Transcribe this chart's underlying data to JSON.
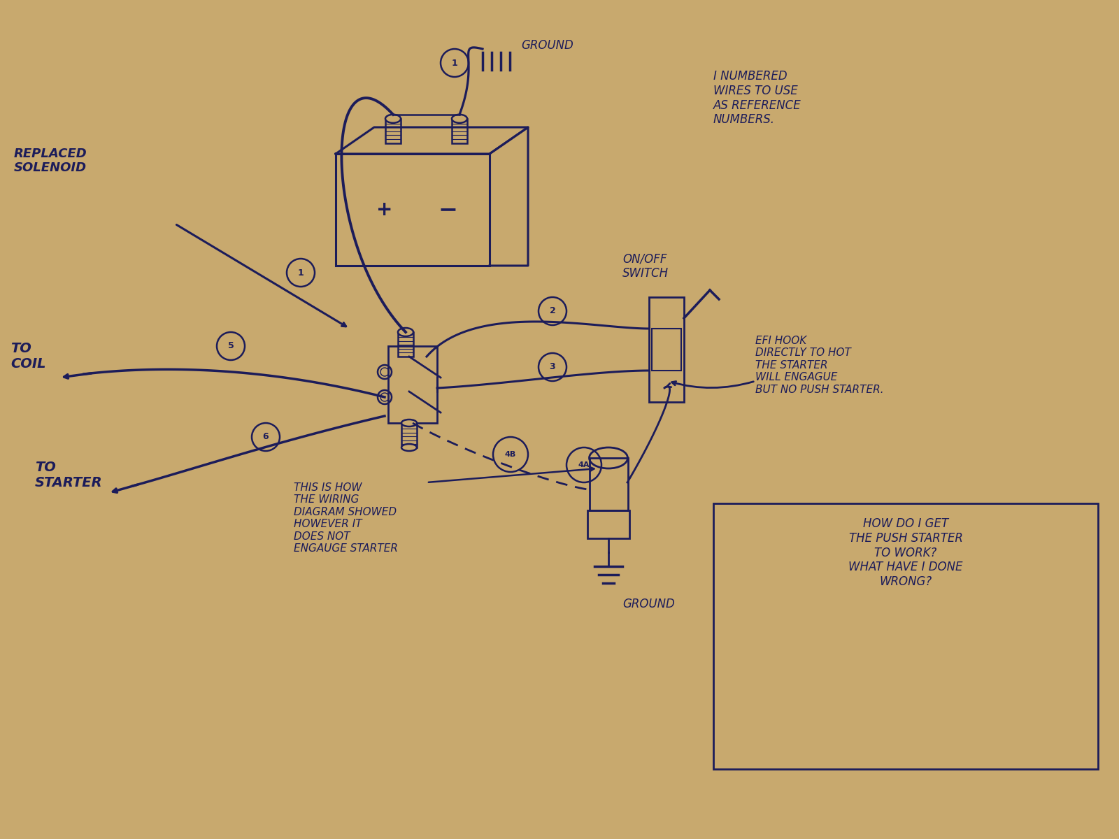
{
  "bg_color": "#c8a96e",
  "ink_color": "#1c1c5a",
  "texts": {
    "replaced_solenoid": "REPLACED\nSOLENOID",
    "to_coil": "TO\nCOIL",
    "to_starter": "TO\nSTARTER",
    "ground_top": "GROUND",
    "ground_bottom": "GROUND",
    "on_off_switch": "ON/OFF\nSWITCH",
    "numbered_note": "I NUMBERED\nWIRES TO USE\nAS REFERENCE\nNUMBERS.",
    "efi_note": "EFI HOOK\nDIRECTLY TO HOT\nTHE STARTER\nWILL ENGAGUE\nBUT NO PUSH STARTER.",
    "wiring_note": "THIS IS HOW\nTHE WIRING\nDIAGRAM SHOWED\nHOWEVER IT\nDOES NOT\nENGAUGE STARTER",
    "question_box": "HOW DO I GET\nTHE PUSH STARTER\nTO WORK?\nWHAT HAVE I DONE\nWRONG?"
  }
}
